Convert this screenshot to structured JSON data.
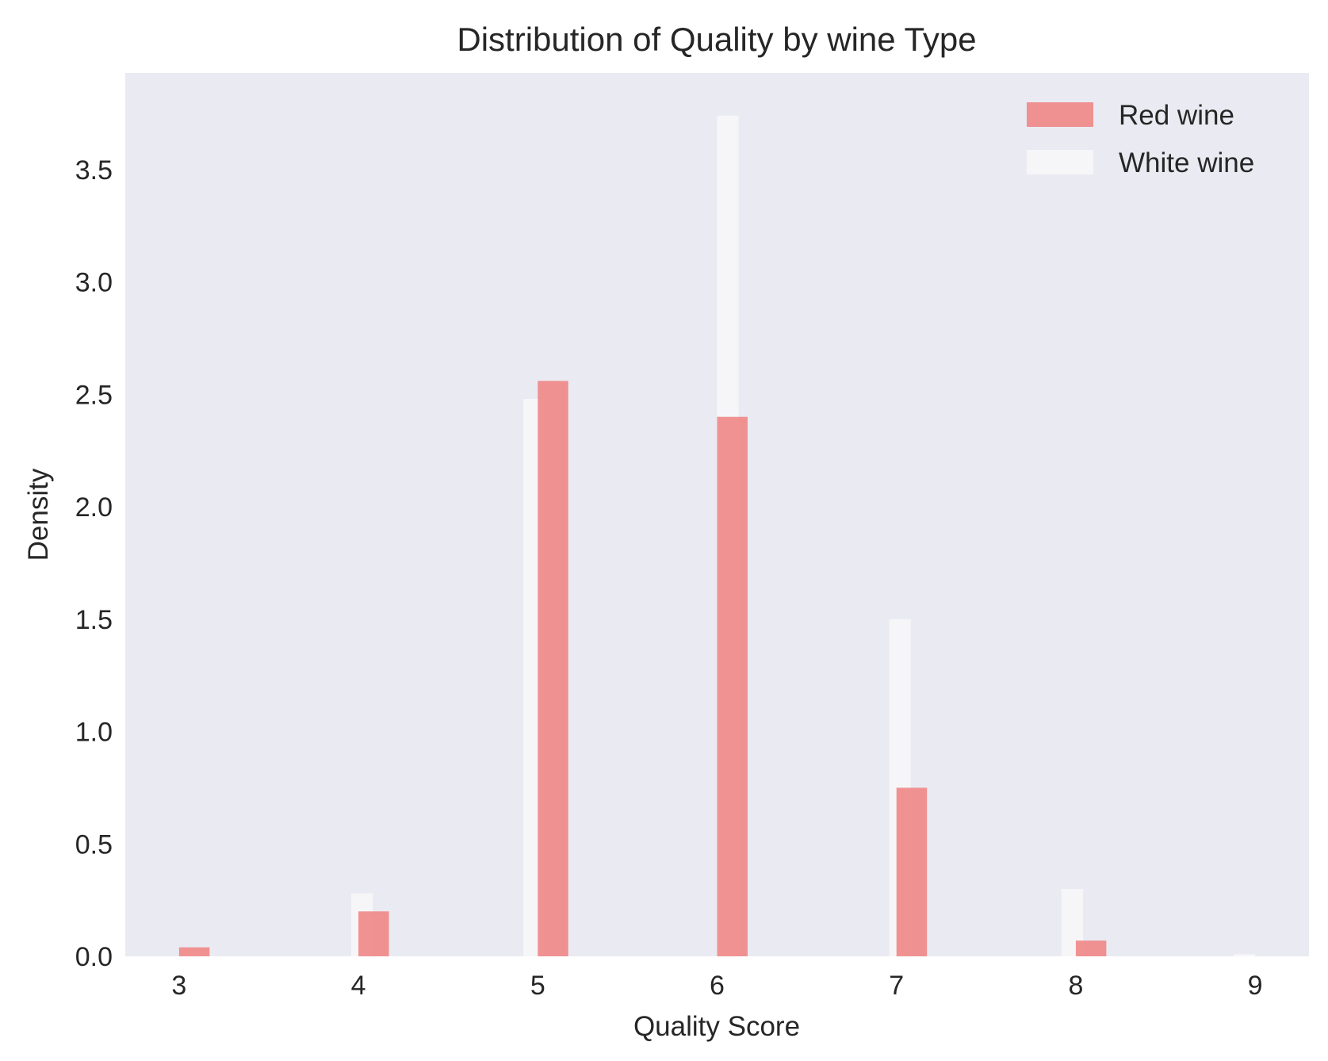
{
  "chart_data": {
    "type": "bar",
    "title": "Distribution of Quality by wine Type",
    "xlabel": "Quality Score",
    "ylabel": "Density",
    "xlim": [
      2.7,
      9.3
    ],
    "ylim": [
      0,
      3.93
    ],
    "xticks": [
      3,
      4,
      5,
      6,
      7,
      8,
      9
    ],
    "yticks": [
      0.0,
      0.5,
      1.0,
      1.5,
      2.0,
      2.5,
      3.0,
      3.5
    ],
    "ytick_labels": [
      "0.0",
      "0.5",
      "1.0",
      "1.5",
      "2.0",
      "2.5",
      "3.0",
      "3.5"
    ],
    "grid": false,
    "legend_position": "top-right",
    "series": [
      {
        "name": "Red wine",
        "color": "#f08080",
        "opacity": 0.85,
        "bars": [
          {
            "start": 3.0,
            "end": 3.17,
            "value": 0.04
          },
          {
            "start": 4.0,
            "end": 4.17,
            "value": 0.2
          },
          {
            "start": 5.0,
            "end": 5.17,
            "value": 2.56
          },
          {
            "start": 6.0,
            "end": 6.17,
            "value": 2.4
          },
          {
            "start": 7.0,
            "end": 7.17,
            "value": 0.75
          },
          {
            "start": 8.0,
            "end": 8.17,
            "value": 0.07
          }
        ]
      },
      {
        "name": "White wine",
        "color": "#ffffff",
        "opacity": 0.55,
        "bars": [
          {
            "start": 3.0,
            "end": 3.12,
            "value": 0.035
          },
          {
            "start": 3.96,
            "end": 4.08,
            "value": 0.28
          },
          {
            "start": 4.92,
            "end": 5.04,
            "value": 2.48
          },
          {
            "start": 6.0,
            "end": 6.12,
            "value": 3.74
          },
          {
            "start": 6.96,
            "end": 7.08,
            "value": 1.5
          },
          {
            "start": 7.92,
            "end": 8.04,
            "value": 0.3
          },
          {
            "start": 8.88,
            "end": 9.0,
            "value": 0.01
          }
        ]
      }
    ]
  }
}
